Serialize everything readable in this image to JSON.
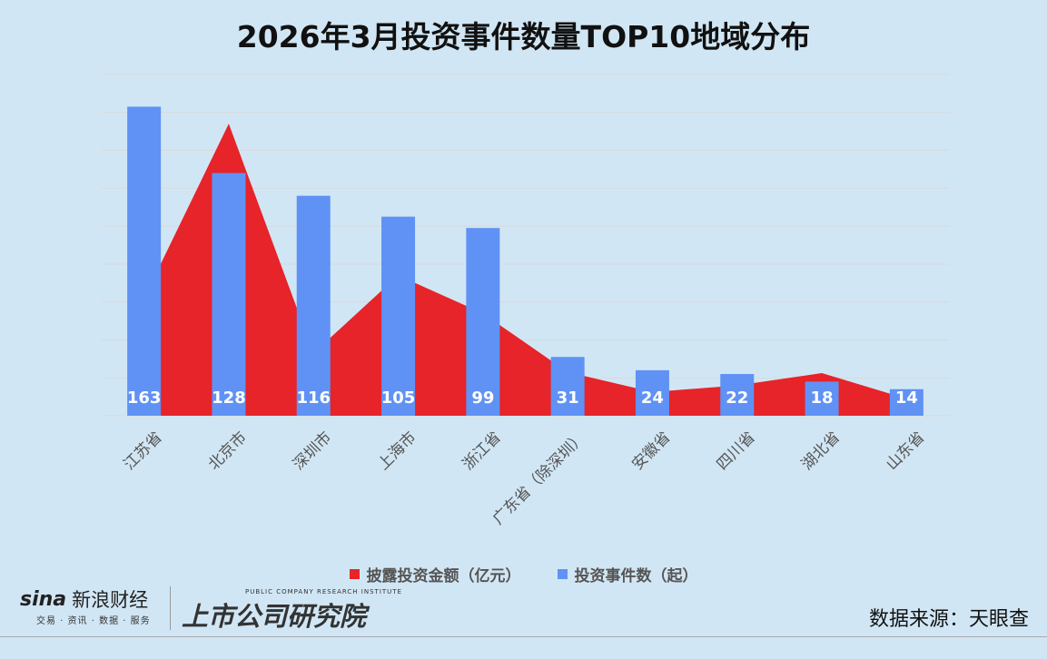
{
  "title": "2026年3月投资事件数量TOP10地域分布",
  "source": "数据来源：天眼查",
  "logos": {
    "sina": {
      "brand": "sina",
      "name": "新浪财经",
      "tagline": "交易 · 资讯 · 数据 · 服务"
    },
    "institute": {
      "english": "PUBLIC COMPANY RESEARCH INSTITUTE",
      "chinese": "上市公司研究院"
    }
  },
  "colors": {
    "background": "#d1e6f4",
    "amount": "#e62429",
    "count": "#6092f5",
    "grid": "#d9d9d9"
  },
  "chart_data": {
    "type": "bar+area",
    "title": "2026年3月投资事件数量TOP10地域分布",
    "categories": [
      "江苏省",
      "北京市",
      "深圳市",
      "上海市",
      "浙江省",
      "广东省（除深圳）",
      "安徽省",
      "四川省",
      "湖北省",
      "山东省"
    ],
    "series": [
      {
        "name": "披露投资金额（亿元）",
        "type": "area",
        "color": "#e62429",
        "axis": "secondary (hidden, values estimated relative)",
        "values": [
          62,
          154,
          33,
          74,
          54,
          23,
          12.5,
          16,
          22.5,
          9
        ]
      },
      {
        "name": "投资事件数（起）",
        "type": "bar",
        "color": "#6092f5",
        "values": [
          163,
          128,
          116,
          105,
          99,
          31,
          24,
          22,
          18,
          14
        ]
      }
    ],
    "ylim": [
      0,
      180
    ],
    "y_grid_step": 20,
    "grid": true,
    "y_axis_labels_shown": false,
    "legend": "bottom",
    "data_labels": "count series, inside bar bottom"
  }
}
